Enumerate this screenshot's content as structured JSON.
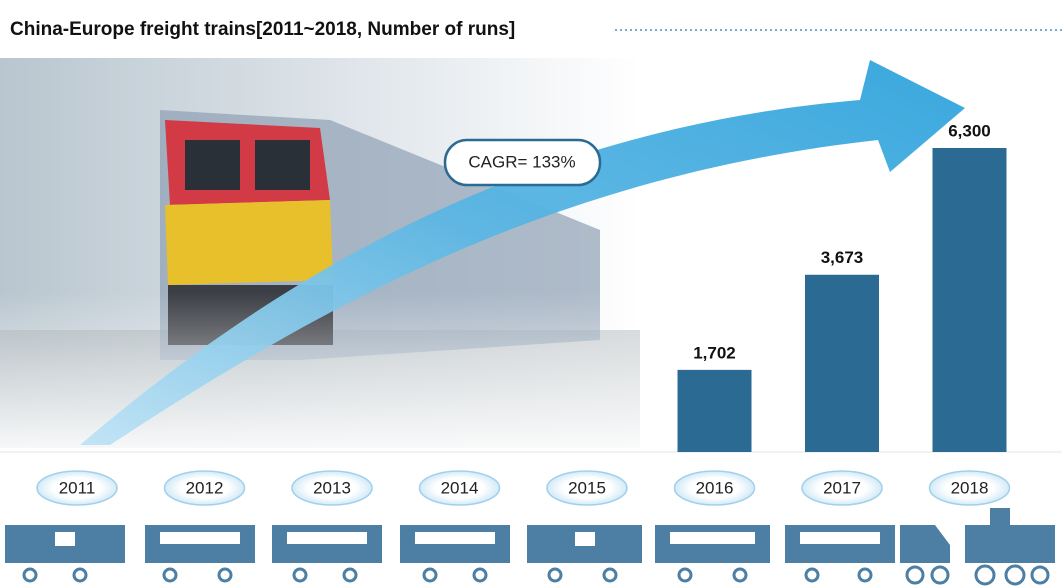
{
  "chart_data": {
    "type": "bar",
    "title": "China-Europe freight trains[2011~2018, Number of runs]",
    "categories": [
      "2011",
      "2012",
      "2013",
      "2014",
      "2015",
      "2016",
      "2017",
      "2018"
    ],
    "values": [
      null,
      null,
      null,
      null,
      null,
      1702,
      3673,
      6300
    ],
    "value_labels": [
      null,
      null,
      null,
      null,
      null,
      "1,702",
      "3,673",
      "6,300"
    ],
    "color": "#2b6a93",
    "annotation": "CAGR= 133%"
  }
}
